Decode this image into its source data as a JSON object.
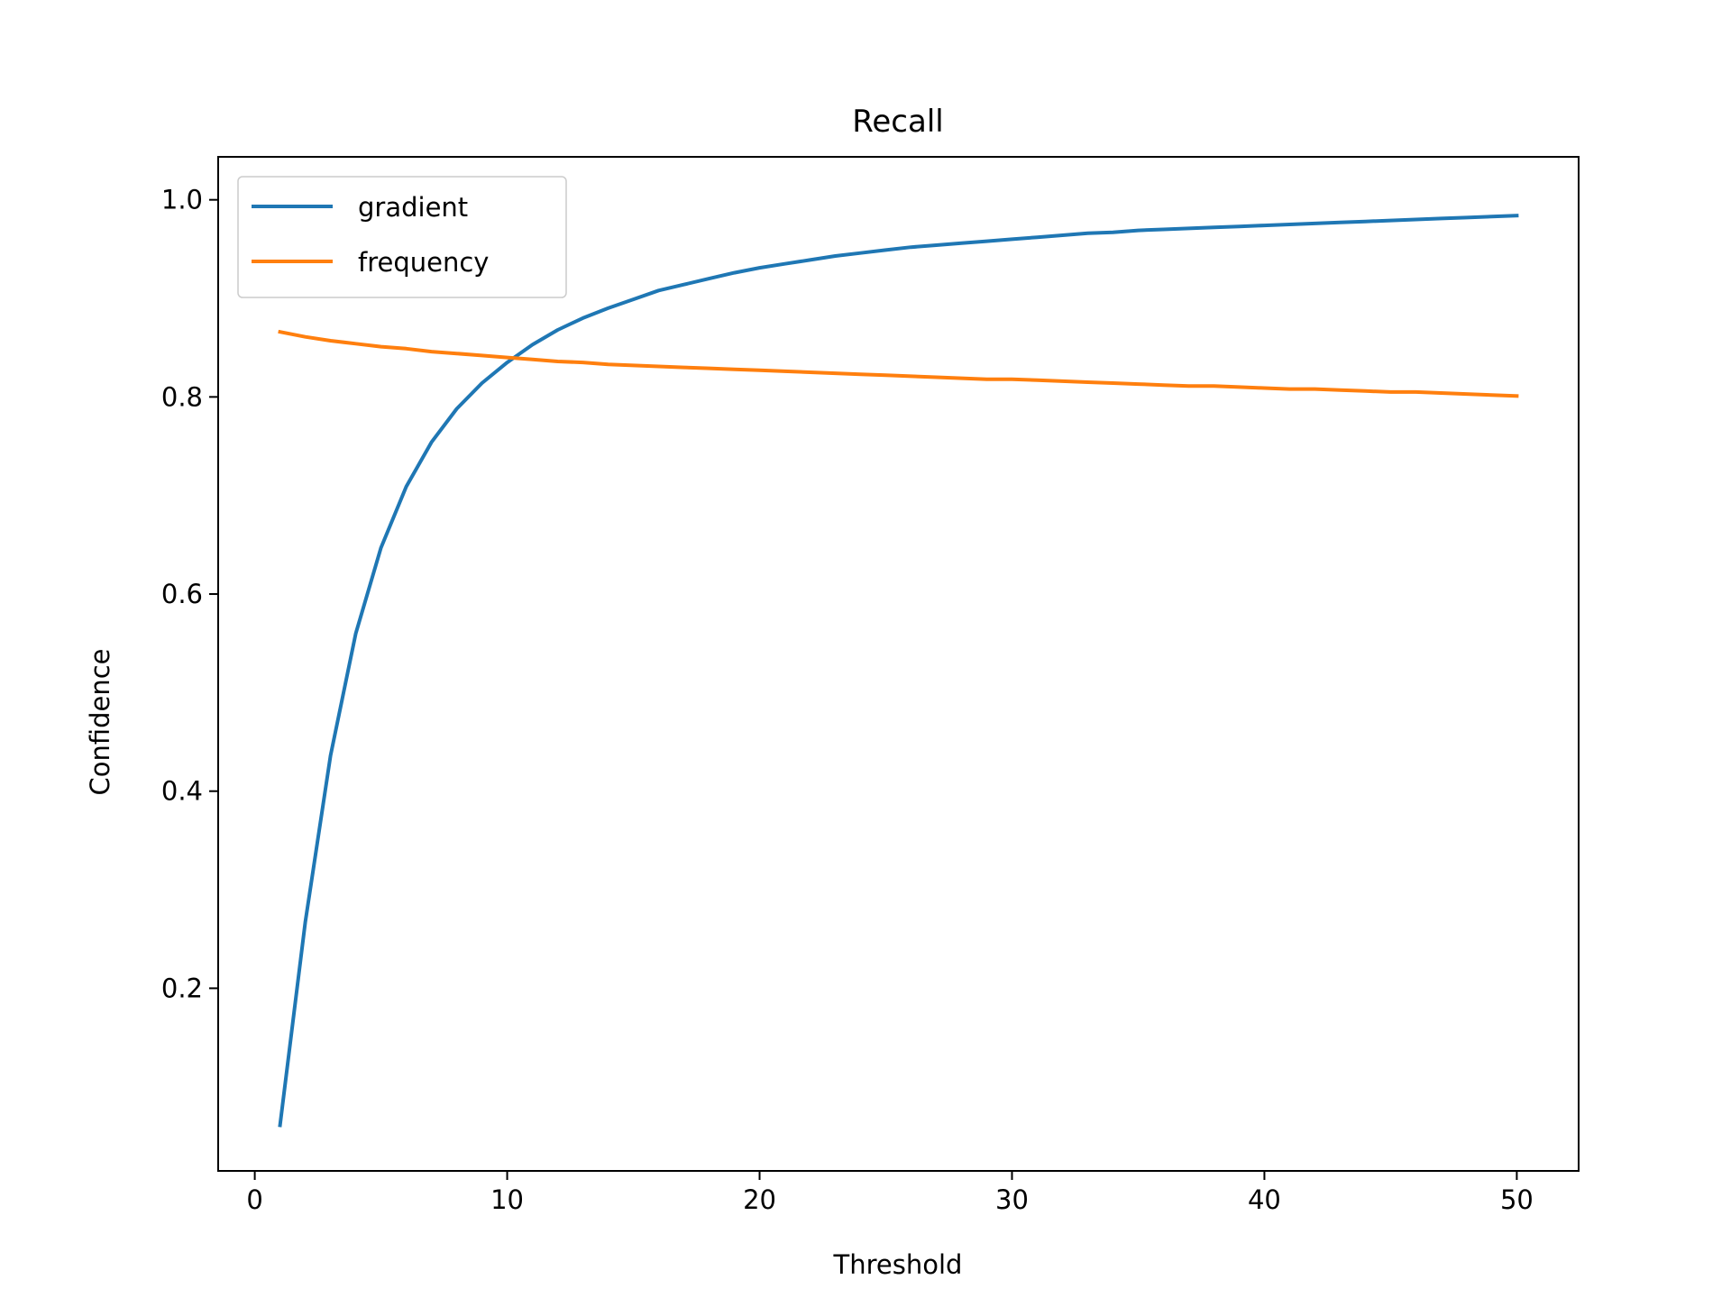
{
  "chart_data": {
    "type": "line",
    "title": "Recall",
    "xlabel": "Threshold",
    "ylabel": "Confidence",
    "xlim": [
      -1.45,
      52.45
    ],
    "ylim": [
      0.0147,
      1.0436
    ],
    "xticks": [
      0,
      10,
      20,
      30,
      40,
      50
    ],
    "xtick_labels": [
      "0",
      "10",
      "20",
      "30",
      "40",
      "50"
    ],
    "yticks": [
      0.2,
      0.4,
      0.6,
      0.8,
      1.0
    ],
    "ytick_labels": [
      "0.2",
      "0.4",
      "0.6",
      "0.8",
      "1.0"
    ],
    "grid": false,
    "legend_position": "top-left",
    "x": [
      1,
      2,
      3,
      4,
      5,
      6,
      7,
      8,
      9,
      10,
      11,
      12,
      13,
      14,
      15,
      16,
      17,
      18,
      19,
      20,
      21,
      22,
      23,
      24,
      25,
      26,
      27,
      28,
      29,
      30,
      31,
      32,
      33,
      34,
      35,
      36,
      37,
      38,
      39,
      40,
      41,
      42,
      43,
      44,
      45,
      46,
      47,
      48,
      49,
      50
    ],
    "series": [
      {
        "name": "gradient",
        "color": "#1f77b4",
        "values": [
          0.061,
          0.267,
          0.436,
          0.56,
          0.647,
          0.709,
          0.754,
          0.788,
          0.814,
          0.835,
          0.853,
          0.868,
          0.88,
          0.89,
          0.899,
          0.908,
          0.914,
          0.92,
          0.926,
          0.931,
          0.935,
          0.939,
          0.943,
          0.946,
          0.949,
          0.952,
          0.954,
          0.956,
          0.958,
          0.96,
          0.962,
          0.964,
          0.966,
          0.967,
          0.969,
          0.97,
          0.971,
          0.972,
          0.973,
          0.974,
          0.975,
          0.976,
          0.977,
          0.978,
          0.979,
          0.98,
          0.981,
          0.982,
          0.983,
          0.984
        ]
      },
      {
        "name": "frequency",
        "color": "#ff7f0e",
        "values": [
          0.866,
          0.861,
          0.857,
          0.854,
          0.851,
          0.849,
          0.846,
          0.844,
          0.842,
          0.84,
          0.838,
          0.836,
          0.835,
          0.833,
          0.832,
          0.831,
          0.83,
          0.829,
          0.828,
          0.827,
          0.826,
          0.825,
          0.824,
          0.823,
          0.822,
          0.821,
          0.82,
          0.819,
          0.818,
          0.818,
          0.817,
          0.816,
          0.815,
          0.814,
          0.813,
          0.812,
          0.811,
          0.811,
          0.81,
          0.809,
          0.808,
          0.808,
          0.807,
          0.806,
          0.805,
          0.805,
          0.804,
          0.803,
          0.802,
          0.801
        ]
      }
    ]
  }
}
